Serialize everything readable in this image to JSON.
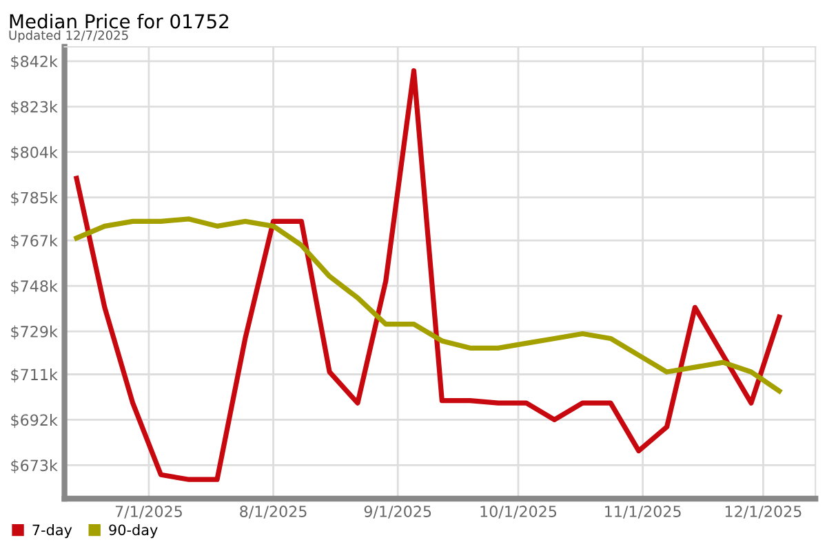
{
  "chart_data": {
    "type": "line",
    "title": "Median Price for 01752",
    "subtitle": "Updated 12/7/2025",
    "x": [
      "2025-06-13",
      "2025-06-20",
      "2025-06-27",
      "2025-07-04",
      "2025-07-11",
      "2025-07-18",
      "2025-07-25",
      "2025-08-01",
      "2025-08-08",
      "2025-08-15",
      "2025-08-22",
      "2025-08-29",
      "2025-09-05",
      "2025-09-12",
      "2025-09-19",
      "2025-09-26",
      "2025-10-03",
      "2025-10-10",
      "2025-10-17",
      "2025-10-24",
      "2025-10-31",
      "2025-11-07",
      "2025-11-14",
      "2025-11-21",
      "2025-11-28",
      "2025-12-05"
    ],
    "series": [
      {
        "name": "7-day",
        "color": "#c8080f",
        "values": [
          793,
          739,
          699,
          669,
          667,
          667,
          726,
          775,
          775,
          712,
          699,
          750,
          838,
          700,
          700,
          699,
          699,
          692,
          699,
          699,
          679,
          689,
          739,
          719,
          699,
          735
        ]
      },
      {
        "name": "90-day",
        "color": "#a3a000",
        "values": [
          768,
          773,
          775,
          775,
          776,
          773,
          775,
          773,
          765,
          752,
          743,
          732,
          732,
          725,
          722,
          722,
          724,
          726,
          728,
          726,
          719,
          712,
          714,
          716,
          712,
          704
        ]
      }
    ],
    "xlim": [
      "2025-06-10",
      "2025-12-14"
    ],
    "xticks": [
      {
        "value": "2025-07-01",
        "label": "7/1/2025"
      },
      {
        "value": "2025-08-01",
        "label": "8/1/2025"
      },
      {
        "value": "2025-09-01",
        "label": "9/1/2025"
      },
      {
        "value": "2025-10-01",
        "label": "10/1/2025"
      },
      {
        "value": "2025-11-01",
        "label": "11/1/2025"
      },
      {
        "value": "2025-12-01",
        "label": "12/1/2025"
      }
    ],
    "ylim": [
      659,
      848
    ],
    "yticks": [
      {
        "value": 673,
        "label": "$673k"
      },
      {
        "value": 692,
        "label": "$692k"
      },
      {
        "value": 711,
        "label": "$711k"
      },
      {
        "value": 729,
        "label": "$729k"
      },
      {
        "value": 748,
        "label": "$748k"
      },
      {
        "value": 767,
        "label": "$767k"
      },
      {
        "value": 785,
        "label": "$785k"
      },
      {
        "value": 804,
        "label": "$804k"
      },
      {
        "value": 823,
        "label": "$823k"
      },
      {
        "value": 842,
        "label": "$842k"
      }
    ],
    "grid": true,
    "legend": "bottom left",
    "marker": "none",
    "line_style": "solid"
  }
}
